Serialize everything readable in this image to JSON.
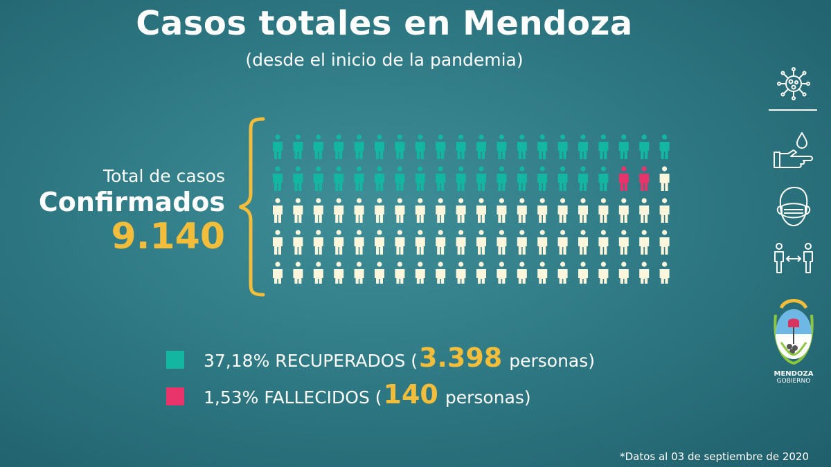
{
  "title": "Casos totales en Mendoza",
  "subtitle": "(desde el inicio de la pandemia)",
  "total": {
    "label": "Total de casos",
    "label_strong": "Confirmados",
    "value": "9.140"
  },
  "legend": [
    {
      "pct": "37,18%",
      "label": "RECUPERADOS (",
      "count": "3.398",
      "suffix": "personas)",
      "color": "#13b6a1"
    },
    {
      "pct": "1,53%",
      "label": "FALLECIDOS (",
      "count": "140",
      "suffix": "personas)",
      "color": "#e8336b"
    }
  ],
  "footnote": "*Datos al 03 de septiembre de 2020",
  "logo": {
    "name": "MENDOZA",
    "sub": "GOBIERNO"
  },
  "icons": [
    "virus-icon",
    "hand-wash-icon",
    "face-mask-icon",
    "social-distance-icon"
  ],
  "colors": {
    "recovered": "#13b6a1",
    "deceased": "#e8336b",
    "other": "#fbf6dc",
    "accent": "#f2bd3b"
  },
  "chart_data": {
    "type": "pictogram",
    "rows": 5,
    "cols": 20,
    "total_icons": 100,
    "series": [
      {
        "name": "RECUPERADOS",
        "value": 37.18,
        "icons": 37
      },
      {
        "name": "FALLECIDOS",
        "value": 1.53,
        "icons": 2
      },
      {
        "name": "",
        "value": 61.29,
        "icons": 61
      }
    ],
    "total_value": 9140
  }
}
